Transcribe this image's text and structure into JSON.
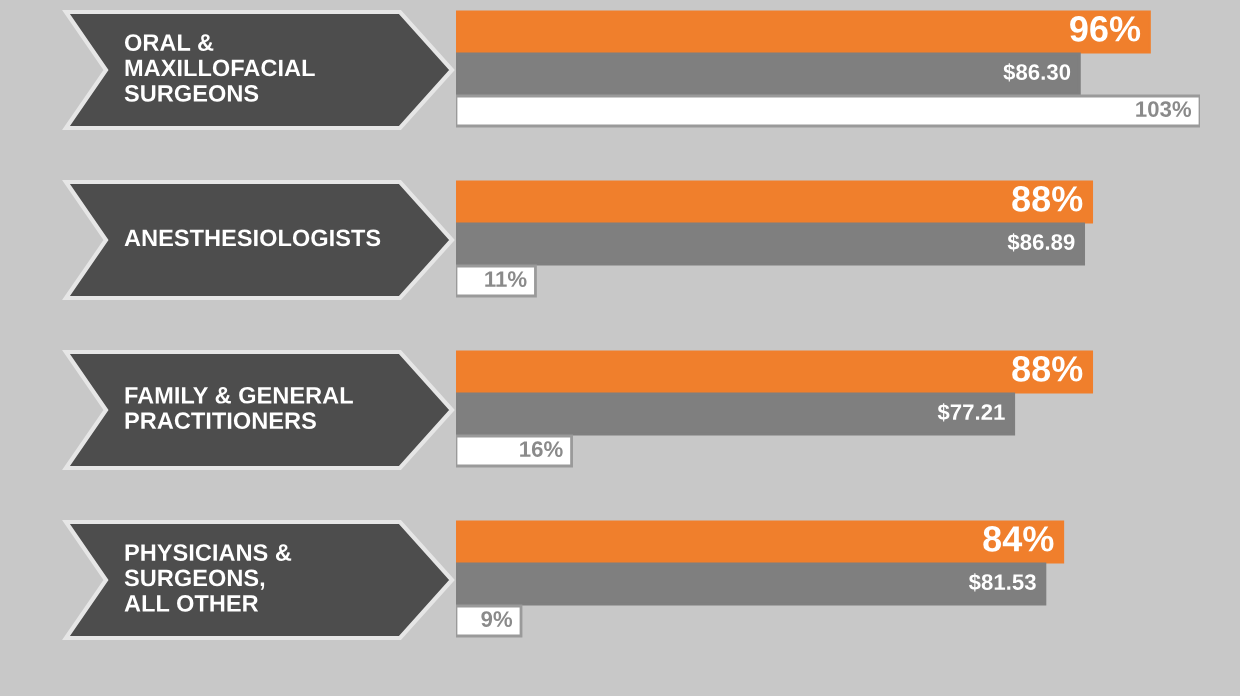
{
  "chart_data": {
    "type": "bar",
    "orientation": "horizontal",
    "tick_labels": false,
    "categories": [
      "ORAL &\nMAXILLOFACIAL\nSURGEONS",
      "ANESTHESIOLOGISTS",
      "FAMILY & GENERAL\nPRACTITIONERS",
      "PHYSICIANS &\nSURGEONS,\nALL OTHER"
    ],
    "series": [
      {
        "color": "#f07f2c",
        "values": [
          96,
          88,
          88,
          84
        ],
        "value_labels": [
          "96%",
          "88%",
          "88%",
          "84%"
        ]
      },
      {
        "color": "#7f7f7f",
        "values": [
          86.3,
          86.89,
          77.21,
          81.53
        ],
        "value_labels": [
          "$86.30",
          "$86.89",
          "$77.21",
          "$81.53"
        ]
      },
      {
        "color": "#ffffff",
        "values": [
          103,
          11,
          16,
          9
        ],
        "value_labels": [
          "103%",
          "11%",
          "16%",
          "9%"
        ]
      }
    ]
  }
}
